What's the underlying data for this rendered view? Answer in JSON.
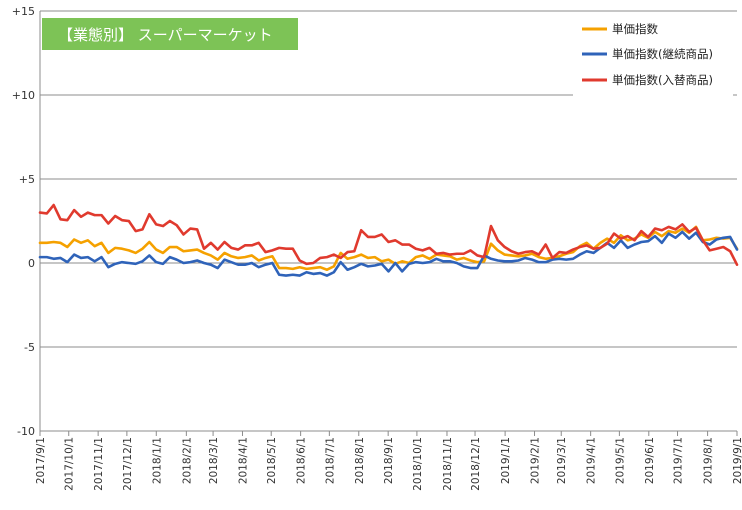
{
  "chart_data": {
    "type": "line",
    "title": "【業態別】 スーパーマーケット",
    "title_bg_color": "#7dc356",
    "ylim": [
      -10,
      15
    ],
    "y_ticks": [
      {
        "value": 15,
        "label": "+15"
      },
      {
        "value": 10,
        "label": "+10"
      },
      {
        "value": 5,
        "label": "+5"
      },
      {
        "value": 0,
        "label": "0"
      },
      {
        "value": -5,
        "label": "-5"
      },
      {
        "value": -10,
        "label": "-10"
      }
    ],
    "x_ticks": [
      {
        "week": 0,
        "label": "2017/9/1"
      },
      {
        "week": 4.3,
        "label": "2017/10/1"
      },
      {
        "week": 8.7,
        "label": "2017/11/1"
      },
      {
        "week": 13,
        "label": "2017/12/1"
      },
      {
        "week": 17.4,
        "label": "2018/1/1"
      },
      {
        "week": 21.9,
        "label": "2018/2/1"
      },
      {
        "week": 25.9,
        "label": "2018/3/1"
      },
      {
        "week": 30.3,
        "label": "2018/4/1"
      },
      {
        "week": 34.6,
        "label": "2018/5/1"
      },
      {
        "week": 39,
        "label": "2018/6/1"
      },
      {
        "week": 43.3,
        "label": "2018/7/1"
      },
      {
        "week": 47.7,
        "label": "2018/8/1"
      },
      {
        "week": 52.1,
        "label": "2018/9/1"
      },
      {
        "week": 56.4,
        "label": "2018/10/1"
      },
      {
        "week": 60.9,
        "label": "2018/11/1"
      },
      {
        "week": 65.1,
        "label": "2018/12/1"
      },
      {
        "week": 69.6,
        "label": "2019/1/1"
      },
      {
        "week": 74,
        "label": "2019/2/1"
      },
      {
        "week": 78,
        "label": "2019/3/1"
      },
      {
        "week": 82.4,
        "label": "2019/4/1"
      },
      {
        "week": 86.7,
        "label": "2019/5/1"
      },
      {
        "week": 91.1,
        "label": "2019/6/1"
      },
      {
        "week": 95.4,
        "label": "2019/7/1"
      },
      {
        "week": 99.9,
        "label": "2019/8/1"
      },
      {
        "week": 104.3,
        "label": "2019/9/1"
      }
    ],
    "x_max": 104.3,
    "legend_position": "top-right",
    "grid": {
      "horizontal": true,
      "vertical": false
    },
    "series": [
      {
        "name": "単価指数",
        "color": "#f5a100",
        "values": [
          1.2,
          1.2,
          1.25,
          1.2,
          0.95,
          1.4,
          1.2,
          1.35,
          1.0,
          1.2,
          0.6,
          0.9,
          0.85,
          0.75,
          0.6,
          0.85,
          1.25,
          0.8,
          0.6,
          0.95,
          0.95,
          0.7,
          0.75,
          0.8,
          0.6,
          0.45,
          0.2,
          0.6,
          0.4,
          0.3,
          0.35,
          0.45,
          0.15,
          0.3,
          0.4,
          -0.3,
          -0.3,
          -0.35,
          -0.25,
          -0.35,
          -0.3,
          -0.25,
          -0.4,
          -0.2,
          0.6,
          0.25,
          0.35,
          0.5,
          0.3,
          0.35,
          0.1,
          0.2,
          -0.05,
          0.1,
          0.0,
          0.35,
          0.45,
          0.25,
          0.5,
          0.45,
          0.4,
          0.2,
          0.3,
          0.15,
          0.05,
          0.1,
          1.15,
          0.75,
          0.5,
          0.45,
          0.4,
          0.45,
          0.55,
          0.35,
          0.25,
          0.3,
          0.4,
          0.55,
          0.65,
          1.0,
          1.2,
          0.85,
          1.2,
          1.45,
          1.2,
          1.65,
          1.35,
          1.45,
          1.7,
          1.5,
          1.85,
          1.6,
          1.9,
          1.8,
          2.05,
          1.8,
          2.15,
          1.35,
          1.4,
          1.5,
          1.45,
          1.5,
          0.85
        ]
      },
      {
        "name": "単価指数(継続商品)",
        "color": "#2f63b9",
        "values": [
          0.35,
          0.35,
          0.25,
          0.3,
          0.05,
          0.5,
          0.3,
          0.35,
          0.1,
          0.35,
          -0.25,
          -0.05,
          0.05,
          0.0,
          -0.05,
          0.1,
          0.45,
          0.05,
          -0.05,
          0.35,
          0.2,
          0.0,
          0.05,
          0.15,
          0.0,
          -0.1,
          -0.3,
          0.2,
          0.05,
          -0.1,
          -0.1,
          0.0,
          -0.25,
          -0.1,
          0.0,
          -0.7,
          -0.75,
          -0.7,
          -0.75,
          -0.55,
          -0.65,
          -0.6,
          -0.75,
          -0.55,
          0.05,
          -0.4,
          -0.25,
          -0.05,
          -0.2,
          -0.15,
          -0.05,
          -0.5,
          0.0,
          -0.5,
          -0.05,
          0.05,
          0.0,
          0.05,
          0.25,
          0.1,
          0.1,
          0.0,
          -0.2,
          -0.3,
          -0.3,
          0.45,
          0.25,
          0.15,
          0.1,
          0.1,
          0.15,
          0.3,
          0.2,
          0.05,
          0.05,
          0.2,
          0.25,
          0.2,
          0.25,
          0.5,
          0.7,
          0.6,
          0.9,
          1.2,
          0.9,
          1.35,
          0.9,
          1.1,
          1.25,
          1.3,
          1.6,
          1.2,
          1.75,
          1.5,
          1.85,
          1.45,
          1.8,
          1.25,
          1.1,
          1.4,
          1.5,
          1.55,
          0.8
        ]
      },
      {
        "name": "単価指数(入替商品)",
        "color": "#e03a2e",
        "values": [
          3.0,
          2.95,
          3.45,
          2.6,
          2.55,
          3.15,
          2.75,
          3.0,
          2.85,
          2.85,
          2.35,
          2.8,
          2.55,
          2.5,
          1.9,
          2.0,
          2.9,
          2.3,
          2.2,
          2.5,
          2.25,
          1.7,
          2.05,
          2.0,
          0.85,
          1.2,
          0.8,
          1.25,
          0.9,
          0.8,
          1.05,
          1.05,
          1.2,
          0.65,
          0.75,
          0.9,
          0.85,
          0.85,
          0.15,
          -0.05,
          0.0,
          0.3,
          0.35,
          0.5,
          0.3,
          0.65,
          0.7,
          1.95,
          1.55,
          1.55,
          1.7,
          1.25,
          1.35,
          1.1,
          1.1,
          0.85,
          0.75,
          0.9,
          0.55,
          0.6,
          0.5,
          0.55,
          0.55,
          0.75,
          0.45,
          0.35,
          2.2,
          1.35,
          0.95,
          0.7,
          0.55,
          0.65,
          0.7,
          0.5,
          1.1,
          0.3,
          0.65,
          0.6,
          0.8,
          0.95,
          1.05,
          0.85,
          0.9,
          1.15,
          1.75,
          1.45,
          1.6,
          1.35,
          1.9,
          1.55,
          2.05,
          1.95,
          2.15,
          2.0,
          2.3,
          1.85,
          2.1,
          1.35,
          0.75,
          0.85,
          0.95,
          0.7,
          -0.1
        ]
      }
    ]
  }
}
